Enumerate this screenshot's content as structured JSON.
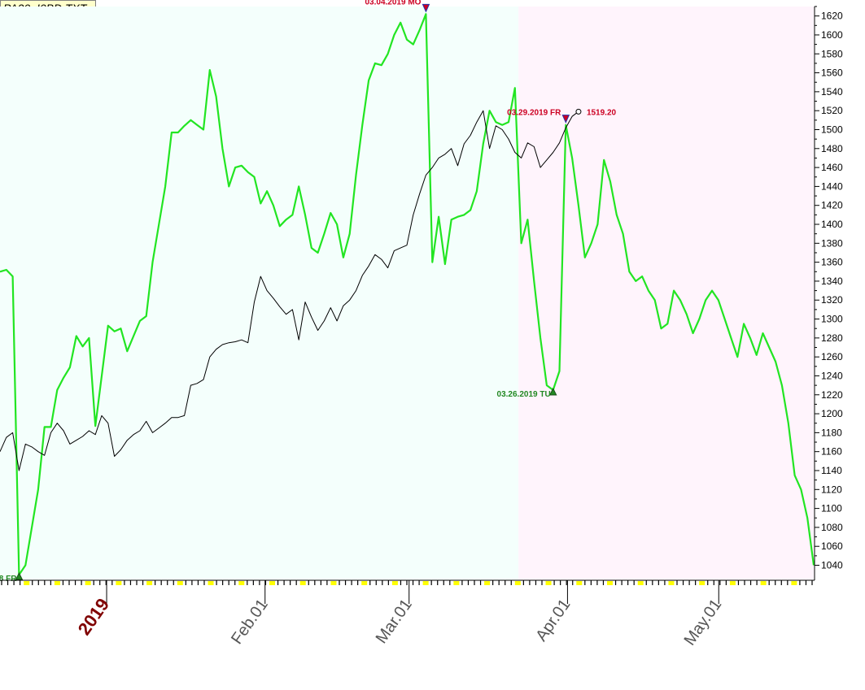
{
  "window": {
    "title": "PA20_I0BD.TXT"
  },
  "colors": {
    "price_line": "#22e522",
    "second_line": "#000000",
    "shade_before": "#f4fffc",
    "shade_after": "#fff4fc",
    "marker_high": "#cc0022",
    "marker_low": "#228822",
    "year_label": "#800000",
    "month_label": "#555555",
    "tick_yellow": "#ffff00"
  },
  "chart_data": {
    "type": "line",
    "title": "",
    "ylim": [
      1025,
      1630
    ],
    "y_ticks": [
      1040,
      1060,
      1080,
      1100,
      1120,
      1140,
      1160,
      1180,
      1200,
      1220,
      1240,
      1260,
      1280,
      1300,
      1320,
      1340,
      1360,
      1380,
      1400,
      1420,
      1440,
      1460,
      1480,
      1500,
      1520,
      1540,
      1560,
      1580,
      1600,
      1620
    ],
    "x_labels": [
      {
        "text": "2019",
        "x": 13,
        "kind": "year"
      },
      {
        "text": "Feb.01",
        "x": 35,
        "kind": "month"
      },
      {
        "text": "Mar.01",
        "x": 55,
        "kind": "month"
      },
      {
        "text": "Apr.01",
        "x": 77,
        "kind": "month"
      },
      {
        "text": "May.01",
        "x": 98,
        "kind": "month"
      }
    ],
    "x_range": [
      0,
      113
    ],
    "shade_split_x": 72,
    "series": [
      {
        "name": "",
        "role": "price",
        "values": [
          1350,
          1352,
          1345,
          1030,
          1040,
          1080,
          1120,
          1186,
          1186,
          1225,
          1238,
          1249,
          1282,
          1271,
          1280,
          1187,
          1240,
          1293,
          1287,
          1290,
          1266,
          1282,
          1298,
          1303,
          1360,
          1400,
          1440,
          1497,
          1497,
          1504,
          1510,
          1505,
          1500,
          1563,
          1535,
          1480,
          1440,
          1460,
          1462,
          1455,
          1450,
          1422,
          1435,
          1420,
          1398,
          1405,
          1410,
          1440,
          1410,
          1375,
          1370,
          1390,
          1412,
          1400,
          1365,
          1390,
          1452,
          1505,
          1552,
          1570,
          1568,
          1580,
          1600,
          1613,
          1595,
          1590,
          1605,
          1622,
          1360,
          1408,
          1358,
          1405,
          1408,
          1410,
          1415,
          1435,
          1485,
          1520,
          1508,
          1505,
          1508,
          1544,
          1380,
          1405,
          1340,
          1280,
          1230,
          1225,
          1245,
          1505,
          1470,
          1420,
          1365,
          1380,
          1400,
          1468,
          1445,
          1410,
          1390,
          1350,
          1340,
          1345,
          1330,
          1320,
          1290,
          1295,
          1330,
          1320,
          1305,
          1285,
          1300,
          1320,
          1330,
          1320,
          1300,
          1280,
          1260,
          1295,
          1280,
          1262,
          1285,
          1270,
          1255,
          1230,
          1190,
          1135,
          1120,
          1090,
          1040
        ]
      },
      {
        "name": "",
        "role": "second",
        "values": [
          1160,
          1175,
          1180,
          1140,
          1168,
          1165,
          1160,
          1156,
          1180,
          1190,
          1182,
          1168,
          1172,
          1176,
          1182,
          1178,
          1198,
          1190,
          1155,
          1162,
          1172,
          1178,
          1182,
          1192,
          1180,
          1185,
          1190,
          1196,
          1196,
          1198,
          1230,
          1232,
          1236,
          1260,
          1268,
          1273,
          1275,
          1276,
          1278,
          1275,
          1318,
          1345,
          1330,
          1322,
          1313,
          1305,
          1310,
          1278,
          1318,
          1302,
          1288,
          1298,
          1312,
          1298,
          1314,
          1320,
          1330,
          1346,
          1356,
          1368,
          1363,
          1354,
          1372,
          1375,
          1378,
          1410,
          1432,
          1452,
          1460,
          1470,
          1474,
          1480,
          1462,
          1485,
          1494,
          1508,
          1520,
          1480,
          1504,
          1500,
          1490,
          1476,
          1470,
          1486,
          1482,
          1460,
          1468,
          1476,
          1486,
          1502,
          1514,
          1519
        ]
      }
    ],
    "annotations": [
      {
        "text": "03.04.2019 MO",
        "type": "high",
        "series_index": 0,
        "point_index": 67
      },
      {
        "text": "03.29.2019 FR",
        "type": "high",
        "series_index": 0,
        "point_index": 89
      },
      {
        "text": "03.26.2019 TU",
        "type": "low",
        "series_index": 0,
        "point_index": 87
      },
      {
        "text": "8 FR",
        "type": "low",
        "series_index": 0,
        "point_index": 3
      },
      {
        "text": "1519.20",
        "type": "last",
        "series_index": 1,
        "point_index": 91
      }
    ]
  }
}
